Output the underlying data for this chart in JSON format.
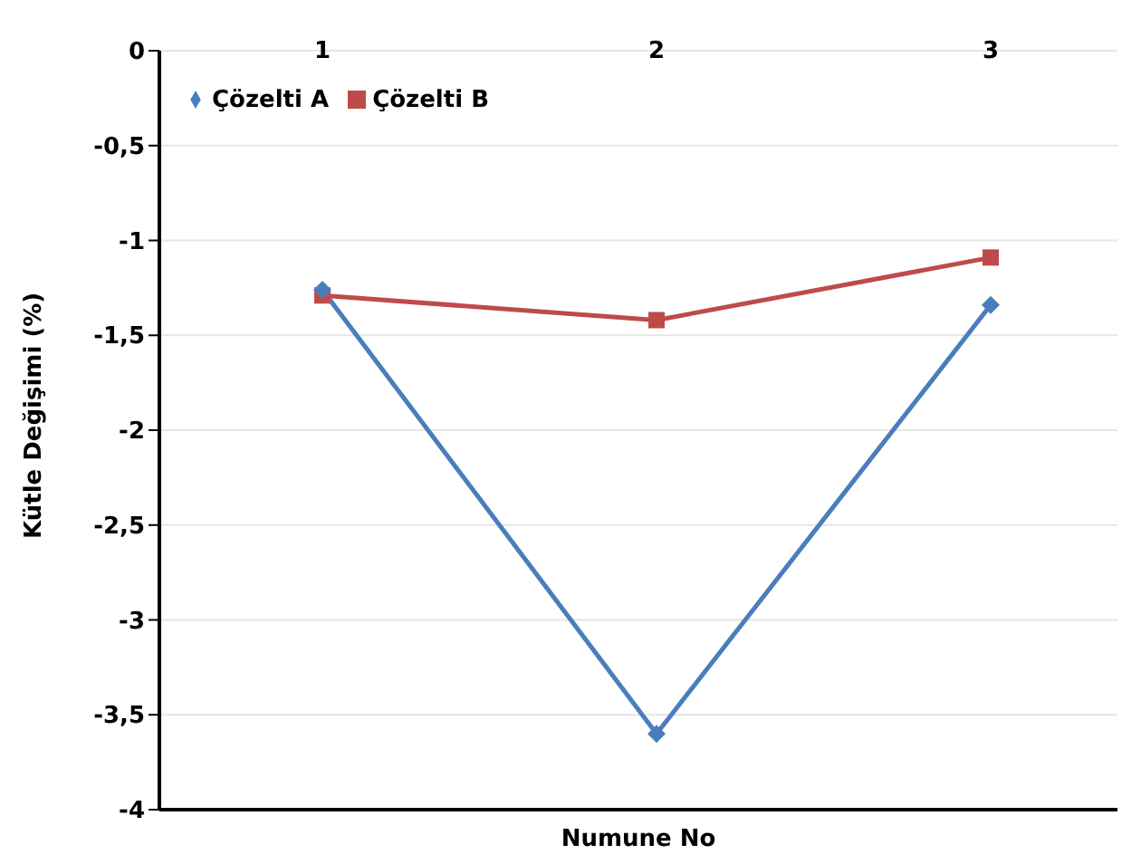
{
  "chart_data": {
    "type": "line",
    "xlabel": "Numune No",
    "ylabel": "Kütle Değişimi (%)",
    "categories": [
      "1",
      "2",
      "3"
    ],
    "series": [
      {
        "name": "Çözelti A",
        "color": "#4a7ebb",
        "marker": "diamond",
        "values": [
          -1.26,
          -3.6,
          -1.34
        ]
      },
      {
        "name": "Çözelti B",
        "color": "#be4b48",
        "marker": "square",
        "values": [
          -1.29,
          -1.42,
          -1.09
        ]
      }
    ],
    "ylim": [
      -4,
      0
    ],
    "yticks": [
      -4,
      {
        "value": -3.5,
        "label": "-3,5"
      },
      -3,
      {
        "value": -2.5,
        "label": "-2,5"
      },
      -2,
      {
        "value": -1.5,
        "label": "-1,5"
      },
      -1,
      {
        "value": -0.5,
        "label": "-0,5"
      },
      0
    ],
    "grid": "y",
    "legend": "top left"
  }
}
